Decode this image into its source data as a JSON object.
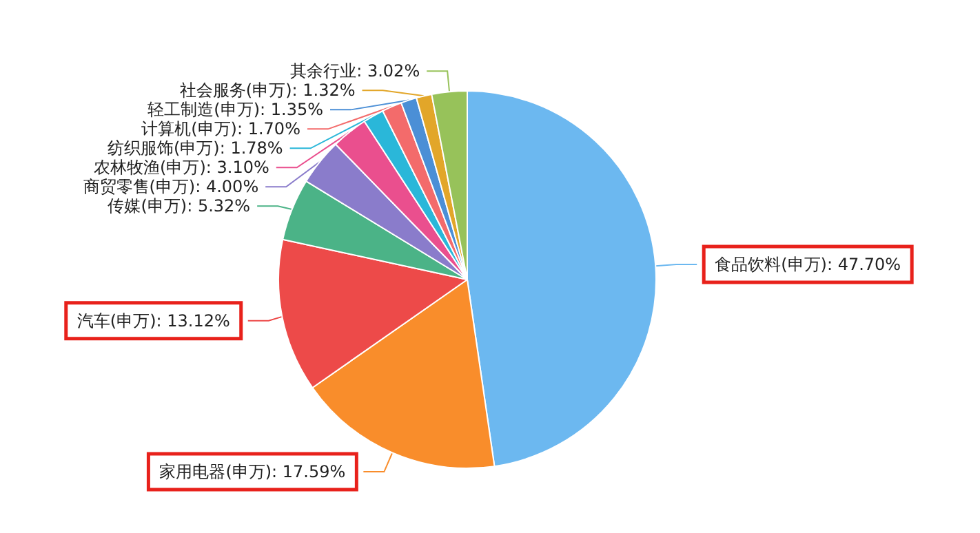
{
  "chart_data": {
    "type": "pie",
    "categories": [
      "食品饮料(申万)",
      "家用电器(申万)",
      "汽车(申万)",
      "传媒(申万)",
      "商贸零售(申万)",
      "农林牧渔(申万)",
      "纺织服饰(申万)",
      "计算机(申万)",
      "轻工制造(申万)",
      "社会服务(申万)",
      "其余行业"
    ],
    "values": [
      47.7,
      17.59,
      13.12,
      5.32,
      4.0,
      3.1,
      1.78,
      1.7,
      1.35,
      1.32,
      3.02
    ],
    "value_labels": [
      "47.70%",
      "17.59%",
      "13.12%",
      "5.32%",
      "4.00%",
      "3.10%",
      "1.78%",
      "1.70%",
      "1.35%",
      "1.32%",
      "3.02%"
    ],
    "colors": [
      "#6cb8f0",
      "#f98d2b",
      "#ed4a49",
      "#4bb387",
      "#8a7ccb",
      "#ea4f8e",
      "#2ab7d9",
      "#f36b6b",
      "#4b8fd6",
      "#e2a629",
      "#97c25a"
    ],
    "legend": false
  }
}
